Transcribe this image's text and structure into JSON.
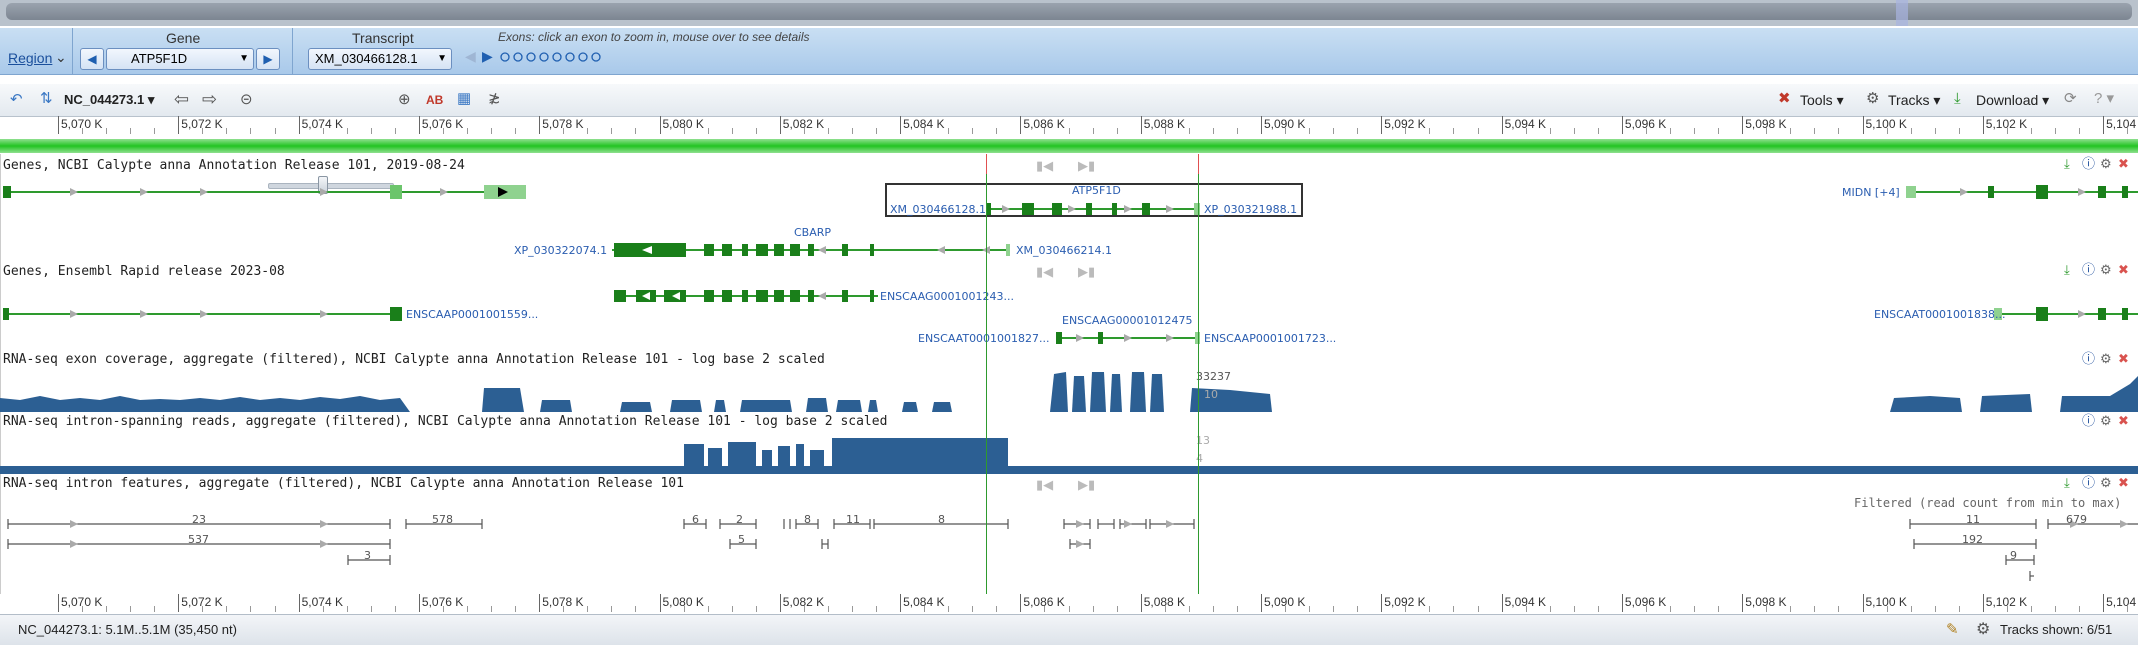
{
  "gene_panel": {
    "region_label": "Region",
    "gene_header": "Gene",
    "gene_value": "ATP5F1D",
    "transcript_header": "Transcript",
    "transcript_value": "XM_030466128.1",
    "exons_hint": "Exons: click an exon to zoom in, mouse over to see details"
  },
  "toolbar": {
    "sequence": "NC_044273.1",
    "tools_label": "Tools",
    "tracks_label": "Tracks",
    "download_label": "Download"
  },
  "ruler_ticks": [
    "5,070 K",
    "5,072 K",
    "5,074 K",
    "5,076 K",
    "5,078 K",
    "5,080 K",
    "5,082 K",
    "5,084 K",
    "5,086 K",
    "5,088 K",
    "5,090 K",
    "5,092 K",
    "5,094 K",
    "5,096 K",
    "5,098 K",
    "5,100 K",
    "5,102 K",
    "5,104"
  ],
  "tracks": [
    {
      "title": "Genes, NCBI Calypte anna Annotation Release 101, 2019-08-24",
      "labels": {
        "atp": "ATP5F1D",
        "xm128": "XM_030466128.1",
        "xp988": "XP_030321988.1",
        "midn": "MIDN [+4]",
        "cbarp": "CBARP",
        "xp074": "XP_030322074.1",
        "xm214": "XM_030466214.1"
      }
    },
    {
      "title": "Genes, Ensembl Rapid release 2023-08",
      "labels": {
        "enscaap1559": "ENSCAAP0001001559...",
        "enscaag1243": "ENSCAAG0001001243...",
        "enscaag12475": "ENSCAAG00001012475",
        "enscaat1827": "ENSCAAT0001001827...",
        "enscaap1723": "ENSCAAP0001001723...",
        "enscaat1838": "ENSCAAT0001001838..."
      }
    },
    {
      "title": "RNA-seq exon coverage, aggregate (filtered), NCBI Calypte anna Annotation Release 101 - log base 2 scaled",
      "labels": {
        "max": "33237",
        "mid": "10"
      }
    },
    {
      "title": "RNA-seq intron-spanning reads, aggregate (filtered), NCBI Calypte anna Annotation Release 101 - log base 2 scaled",
      "labels": {
        "max": "13",
        "mid": "4"
      }
    },
    {
      "title": "RNA-seq intron features, aggregate (filtered), NCBI Calypte anna Annotation Release 101",
      "labels": {
        "filter": "Filtered (read count from min to max)",
        "c23": "23",
        "c537": "537",
        "c3": "3",
        "c578": "578",
        "c6": "6",
        "c2": "2",
        "c5": "5",
        "c8a": "8",
        "c11": "11",
        "c8b": "8",
        "c11r": "11",
        "c679": "679",
        "c192": "192",
        "c9": "9"
      }
    }
  ],
  "status": {
    "location": "NC_044273.1: 5.1M..5.1M (35,450 nt)",
    "tracks_shown": "Tracks shown: 6/51"
  },
  "colors": {
    "gene_green": "#2e9a2e",
    "exon_dark": "#1a7f1a",
    "coverage_blue": "#2c5f93",
    "header_blue": "#a9c9ea"
  }
}
